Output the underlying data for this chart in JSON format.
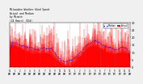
{
  "title": "Milwaukee Weather Wind Speed\nActual and Median\nby Minute\n(24 Hours) (Old)",
  "background_color": "#f0f0f0",
  "plot_bg_color": "#ffffff",
  "n_points": 1440,
  "actual_color": "#ff0000",
  "median_color": "#0000ff",
  "ylim": [
    0,
    30
  ],
  "yticks": [
    0,
    5,
    10,
    15,
    20,
    25,
    30
  ],
  "num_vgrid_lines": 8,
  "legend_actual": "Actual",
  "legend_median": "Median"
}
